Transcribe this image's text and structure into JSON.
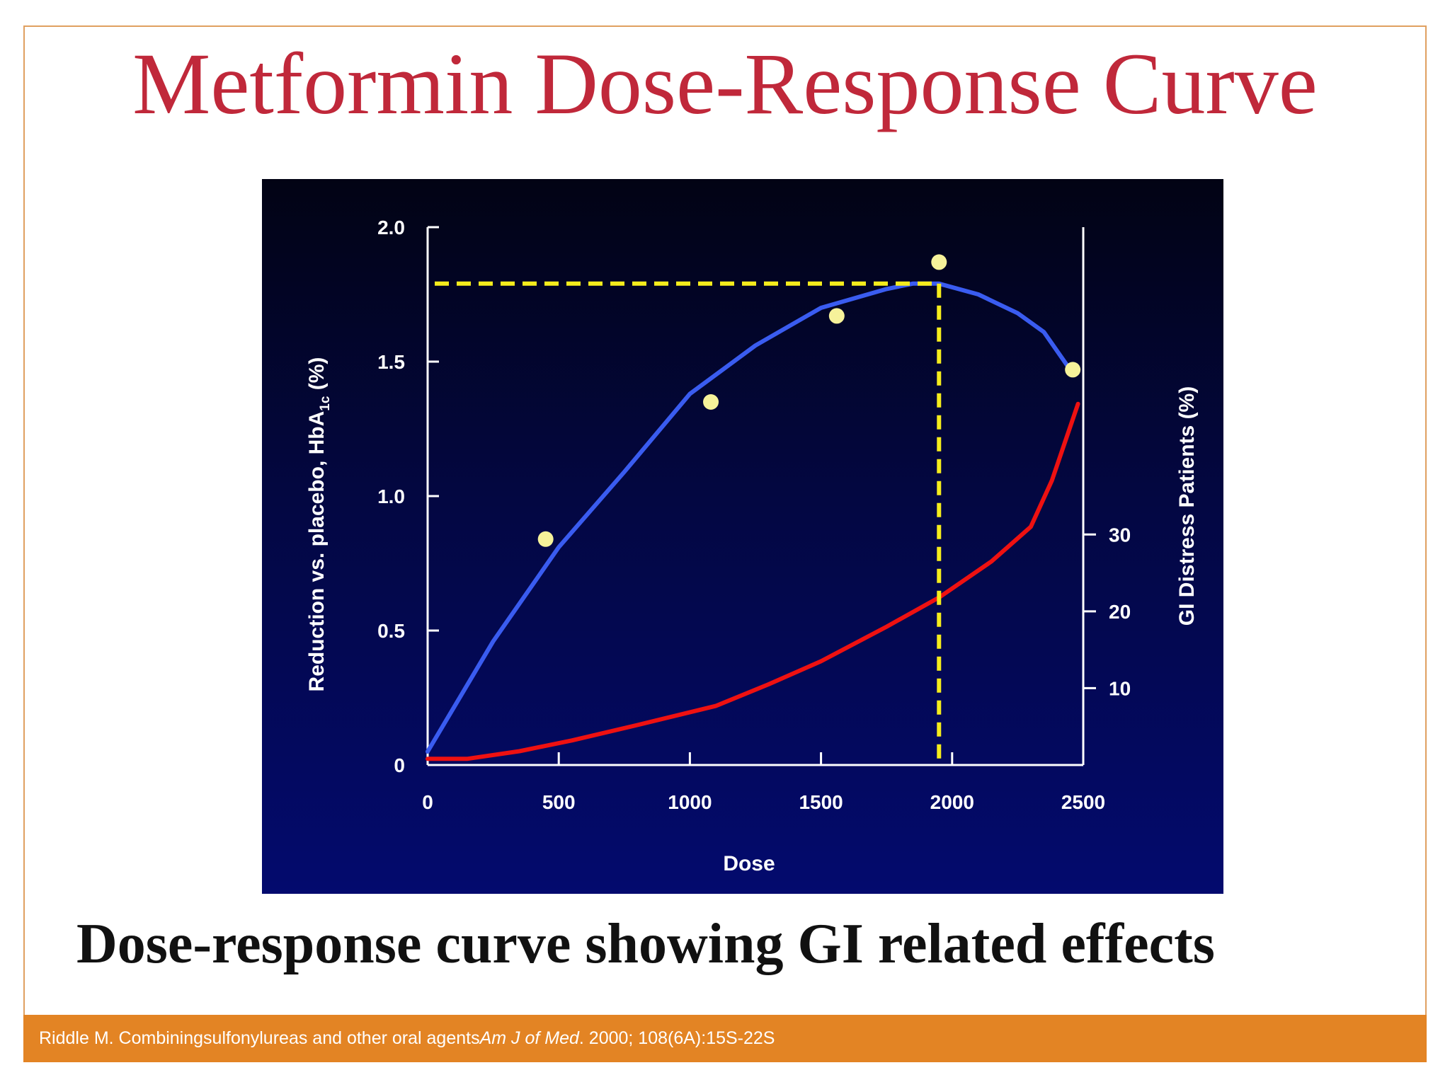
{
  "slide": {
    "title": "Metformin Dose-Response Curve",
    "caption": "Dose-response curve showing GI related effects",
    "citation": {
      "prefix": "Riddle M. Combiningsulfonylureas  and other oral agents",
      "journal": "Am J of Med",
      "suffix": ". 2000; 108(6A):15S-22S"
    },
    "colors": {
      "title": "#c0283a",
      "footer": "#e38424",
      "chart_background_top": "#020314",
      "chart_background_bottom": "#030a6e"
    }
  },
  "chart_data": {
    "type": "line",
    "title": "",
    "xlabel": "Dose",
    "ylabel": "Reduction vs. placebo, HbA",
    "ylabel_subscript": "1c",
    "ylabel_suffix": " (%)",
    "y2label": "GI Distress Patients (%)",
    "xlim": [
      0,
      2500
    ],
    "ylim": [
      0,
      2.0
    ],
    "y2lim": [
      0,
      70
    ],
    "x_ticks": [
      {
        "value": 0,
        "label": "0"
      },
      {
        "value": 500,
        "label": "500"
      },
      {
        "value": 1000,
        "label": "1000"
      },
      {
        "value": 1500,
        "label": "1500"
      },
      {
        "value": 2000,
        "label": "2000"
      },
      {
        "value": 2500,
        "label": "2500"
      }
    ],
    "y_ticks": [
      {
        "value": 0,
        "label": "0"
      },
      {
        "value": 0.5,
        "label": "0.5"
      },
      {
        "value": 1.0,
        "label": "1.0"
      },
      {
        "value": 1.5,
        "label": "1.5"
      },
      {
        "value": 2.0,
        "label": "2.0"
      }
    ],
    "y2_ticks": [
      {
        "value": 10,
        "label": "10"
      },
      {
        "value": 20,
        "label": "20"
      },
      {
        "value": 30,
        "label": "30"
      }
    ],
    "series": [
      {
        "axis": "left",
        "color": "#3a5cf0",
        "x": [
          0,
          250,
          500,
          750,
          1000,
          1250,
          1500,
          1750,
          1850,
          1950,
          2100,
          2250,
          2350,
          2450
        ],
        "y": [
          0.05,
          0.46,
          0.81,
          1.09,
          1.38,
          1.56,
          1.7,
          1.77,
          1.79,
          1.79,
          1.75,
          1.68,
          1.61,
          1.47
        ]
      },
      {
        "axis": "right",
        "color": "#ee1111",
        "x": [
          0,
          150,
          350,
          550,
          800,
          1100,
          1300,
          1500,
          1750,
          1950,
          2150,
          2300,
          2380,
          2430,
          2480
        ],
        "y": [
          0.8,
          0.8,
          1.8,
          3.2,
          5.2,
          7.7,
          10.5,
          13.5,
          18.0,
          21.8,
          26.5,
          31.0,
          37.0,
          42.0,
          47.0
        ]
      }
    ],
    "markers": {
      "color": "#f6f29a",
      "points": [
        {
          "x": 450,
          "y": 0.84
        },
        {
          "x": 1080,
          "y": 1.35
        },
        {
          "x": 1560,
          "y": 1.67
        },
        {
          "x": 1950,
          "y": 1.87
        },
        {
          "x": 2460,
          "y": 1.47
        }
      ]
    },
    "reference": {
      "color": "#f5ec1c",
      "dose": 1950,
      "reduction": 1.79
    },
    "grid": false,
    "legend": "none"
  }
}
